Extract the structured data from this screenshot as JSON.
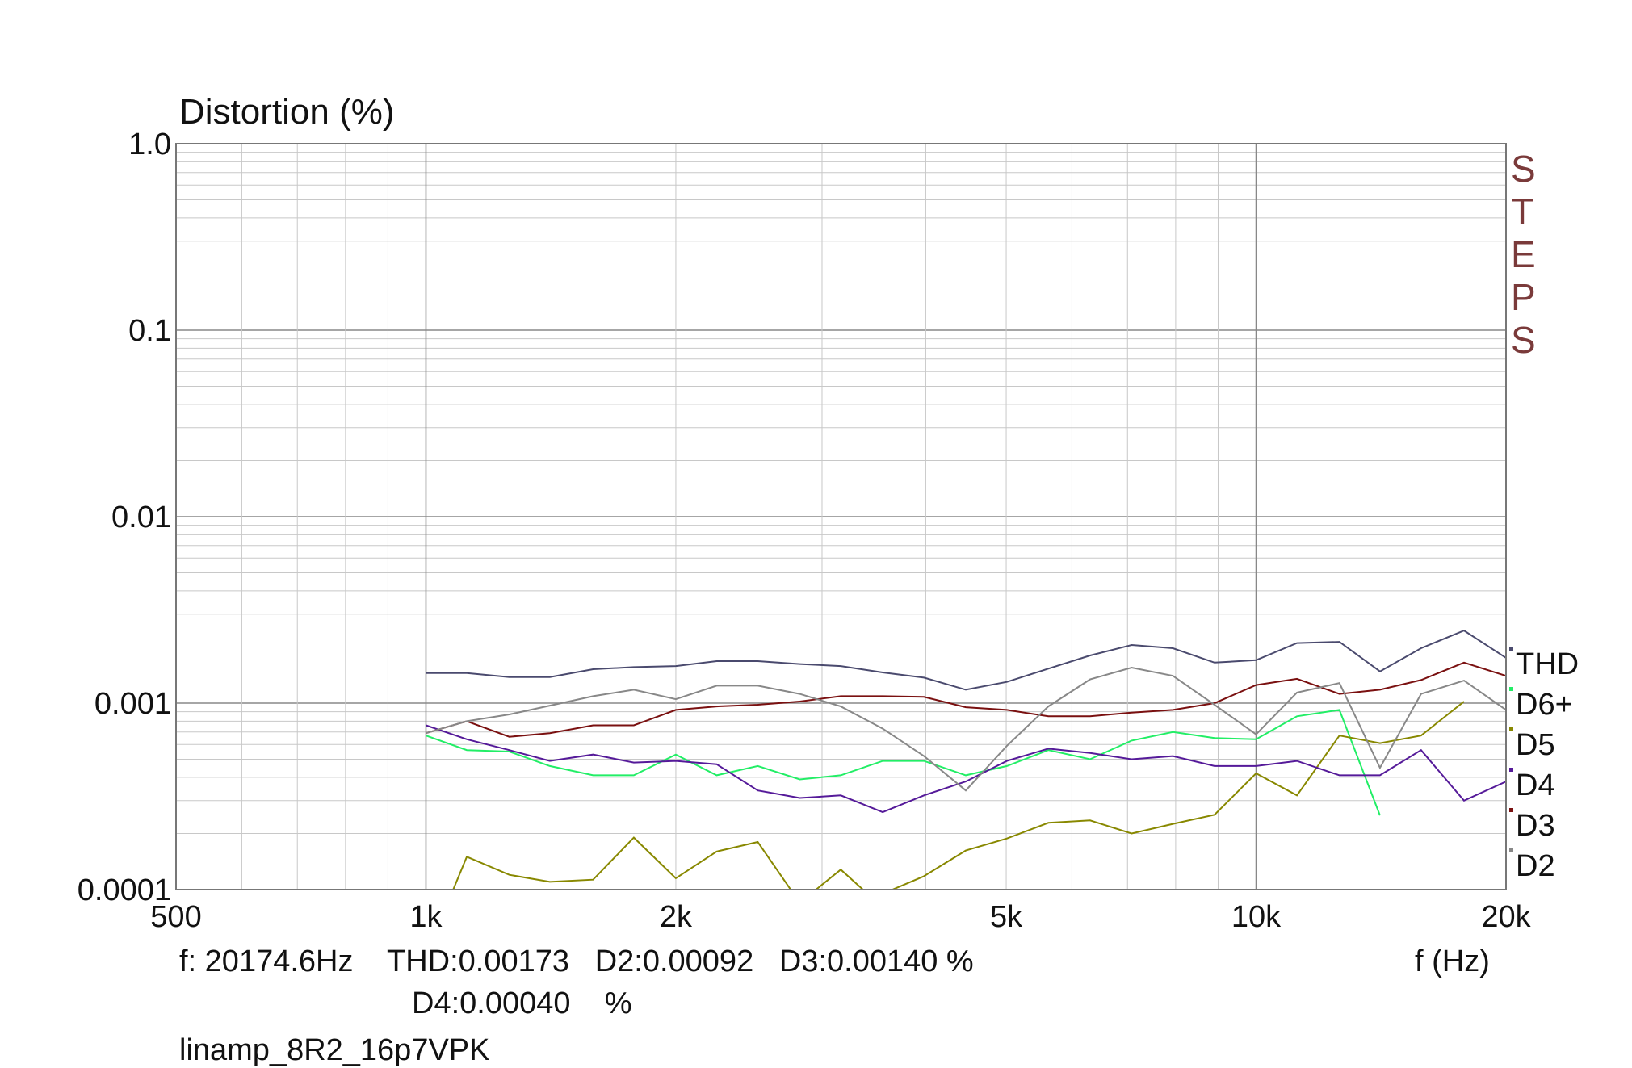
{
  "chart_data": {
    "type": "line",
    "title": "Distortion (%)",
    "ylabel": "Distortion (%)",
    "xlabel": "f (Hz)",
    "xscale": "log",
    "yscale": "log",
    "xlim": [
      500,
      20000
    ],
    "ylim": [
      0.0001,
      1.0
    ],
    "grid": true,
    "x_ticks": [
      {
        "value": 500,
        "label": "500"
      },
      {
        "value": 1000,
        "label": "1k"
      },
      {
        "value": 2000,
        "label": "2k"
      },
      {
        "value": 5000,
        "label": "5k"
      },
      {
        "value": 10000,
        "label": "10k"
      },
      {
        "value": 20000,
        "label": "20k"
      }
    ],
    "y_ticks": [
      {
        "value": 1.0,
        "label": "1.0"
      },
      {
        "value": 0.1,
        "label": "0.1"
      },
      {
        "value": 0.01,
        "label": "0.01"
      },
      {
        "value": 0.001,
        "label": "0.001"
      },
      {
        "value": 0.0001,
        "label": "0.0001"
      }
    ],
    "legend_position": "right",
    "brand_letters": [
      "S",
      "T",
      "E",
      "P",
      "S"
    ],
    "series": [
      {
        "name": "THD",
        "color": "#4a4a6e",
        "points": [
          [
            1000,
            0.00145
          ],
          [
            1120,
            0.00145
          ],
          [
            1260,
            0.00138
          ],
          [
            1410,
            0.00138
          ],
          [
            1590,
            0.00152
          ],
          [
            1780,
            0.00156
          ],
          [
            2000,
            0.00158
          ],
          [
            2240,
            0.00168
          ],
          [
            2510,
            0.00168
          ],
          [
            2820,
            0.00162
          ],
          [
            3160,
            0.00158
          ],
          [
            3550,
            0.00146
          ],
          [
            3980,
            0.00137
          ],
          [
            4470,
            0.00118
          ],
          [
            5010,
            0.0013
          ],
          [
            5620,
            0.00153
          ],
          [
            6310,
            0.0018
          ],
          [
            7080,
            0.00205
          ],
          [
            7940,
            0.00197
          ],
          [
            8910,
            0.00165
          ],
          [
            10000,
            0.0017
          ],
          [
            11200,
            0.0021
          ],
          [
            12600,
            0.00213
          ],
          [
            14100,
            0.00148
          ],
          [
            15800,
            0.00197
          ],
          [
            17800,
            0.00245
          ],
          [
            20000,
            0.00175
          ]
        ]
      },
      {
        "name": "D6+",
        "color": "#22ee66",
        "points": [
          [
            1000,
            0.00067
          ],
          [
            1120,
            0.00056
          ],
          [
            1260,
            0.00055
          ],
          [
            1410,
            0.00046
          ],
          [
            1590,
            0.00041
          ],
          [
            1780,
            0.00041
          ],
          [
            2000,
            0.00053
          ],
          [
            2240,
            0.00041
          ],
          [
            2510,
            0.00046
          ],
          [
            2820,
            0.00039
          ],
          [
            3160,
            0.00041
          ],
          [
            3550,
            0.00049
          ],
          [
            3980,
            0.00049
          ],
          [
            4470,
            0.00041
          ],
          [
            5010,
            0.00046
          ],
          [
            5620,
            0.00056
          ],
          [
            6310,
            0.0005
          ],
          [
            7080,
            0.00063
          ],
          [
            7940,
            0.0007
          ],
          [
            8910,
            0.00065
          ],
          [
            10000,
            0.00064
          ],
          [
            11200,
            0.00085
          ],
          [
            12600,
            0.00092
          ],
          [
            14100,
            0.00025
          ]
        ]
      },
      {
        "name": "D5",
        "color": "#888800",
        "points": [
          [
            1050,
            7.5e-05
          ],
          [
            1120,
            0.00015
          ],
          [
            1260,
            0.00012
          ],
          [
            1410,
            0.00011
          ],
          [
            1590,
            0.000113
          ],
          [
            1780,
            0.00019
          ],
          [
            2000,
            0.000115
          ],
          [
            2240,
            0.00016
          ],
          [
            2510,
            0.00018
          ],
          [
            2820,
            8.5e-05
          ],
          [
            3160,
            0.000128
          ],
          [
            3450,
            9e-05
          ],
          [
            3980,
            0.000118
          ],
          [
            4470,
            0.000162
          ],
          [
            5010,
            0.000188
          ],
          [
            5620,
            0.000228
          ],
          [
            6310,
            0.000235
          ],
          [
            7080,
            0.0002
          ],
          [
            7940,
            0.000225
          ],
          [
            8910,
            0.000252
          ],
          [
            10000,
            0.00042
          ],
          [
            11200,
            0.00032
          ],
          [
            12600,
            0.00067
          ],
          [
            14100,
            0.00061
          ],
          [
            15800,
            0.00067
          ],
          [
            17800,
            0.00102
          ]
        ]
      },
      {
        "name": "D4",
        "color": "#551a99",
        "points": [
          [
            1000,
            0.00076
          ],
          [
            1120,
            0.00064
          ],
          [
            1260,
            0.00056
          ],
          [
            1410,
            0.00049
          ],
          [
            1590,
            0.00053
          ],
          [
            1780,
            0.00048
          ],
          [
            2000,
            0.00049
          ],
          [
            2240,
            0.00047
          ],
          [
            2510,
            0.00034
          ],
          [
            2820,
            0.00031
          ],
          [
            3160,
            0.00032
          ],
          [
            3550,
            0.00026
          ],
          [
            3980,
            0.00032
          ],
          [
            4470,
            0.00038
          ],
          [
            5010,
            0.00049
          ],
          [
            5620,
            0.00057
          ],
          [
            6310,
            0.00054
          ],
          [
            7080,
            0.0005
          ],
          [
            7940,
            0.00052
          ],
          [
            8910,
            0.00046
          ],
          [
            10000,
            0.00046
          ],
          [
            11200,
            0.00049
          ],
          [
            12600,
            0.00041
          ],
          [
            14100,
            0.00041
          ],
          [
            15800,
            0.00056
          ],
          [
            17800,
            0.0003
          ],
          [
            20000,
            0.00038
          ]
        ]
      },
      {
        "name": "D3",
        "color": "#7a1010",
        "points": [
          [
            1000,
            0.00069
          ],
          [
            1120,
            0.0008
          ],
          [
            1260,
            0.00066
          ],
          [
            1410,
            0.00069
          ],
          [
            1590,
            0.00076
          ],
          [
            1780,
            0.00076
          ],
          [
            2000,
            0.00092
          ],
          [
            2240,
            0.00096
          ],
          [
            2510,
            0.00098
          ],
          [
            2820,
            0.00102
          ],
          [
            3160,
            0.00109
          ],
          [
            3550,
            0.00109
          ],
          [
            3980,
            0.00108
          ],
          [
            4470,
            0.00095
          ],
          [
            5010,
            0.00092
          ],
          [
            5620,
            0.00085
          ],
          [
            6310,
            0.00085
          ],
          [
            7080,
            0.00089
          ],
          [
            7940,
            0.00092
          ],
          [
            8910,
            0.001
          ],
          [
            10000,
            0.00125
          ],
          [
            11200,
            0.00135
          ],
          [
            12600,
            0.00112
          ],
          [
            14100,
            0.00118
          ],
          [
            15800,
            0.00133
          ],
          [
            17800,
            0.00165
          ],
          [
            20000,
            0.0014
          ]
        ]
      },
      {
        "name": "D2",
        "color": "#888888",
        "points": [
          [
            1000,
            0.00069
          ],
          [
            1120,
            0.0008
          ],
          [
            1260,
            0.00087
          ],
          [
            1410,
            0.00097
          ],
          [
            1590,
            0.00109
          ],
          [
            1780,
            0.00118
          ],
          [
            2000,
            0.00105
          ],
          [
            2240,
            0.00124
          ],
          [
            2510,
            0.00124
          ],
          [
            2820,
            0.00112
          ],
          [
            3160,
            0.00096
          ],
          [
            3550,
            0.00073
          ],
          [
            3980,
            0.00052
          ],
          [
            4470,
            0.00034
          ],
          [
            5010,
            0.00059
          ],
          [
            5620,
            0.00096
          ],
          [
            6310,
            0.00134
          ],
          [
            7080,
            0.00155
          ],
          [
            7940,
            0.0014
          ],
          [
            8910,
            0.00098
          ],
          [
            10000,
            0.00068
          ],
          [
            11200,
            0.00114
          ],
          [
            12600,
            0.00128
          ],
          [
            14100,
            0.00045
          ],
          [
            15800,
            0.00112
          ],
          [
            17800,
            0.00132
          ],
          [
            20000,
            0.00092
          ]
        ]
      }
    ]
  },
  "readout": {
    "line1": "f: 20174.6Hz    THD:0.00173   D2:0.00092   D3:0.00140 %",
    "line2": "D4:0.00040    %",
    "xunit": "f (Hz)",
    "footer": "linamp_8R2_16p7VPK"
  },
  "colors": {
    "grid_major": "#888888",
    "grid_minor": "#c8c8c8",
    "brand": "#7a3a3a"
  }
}
